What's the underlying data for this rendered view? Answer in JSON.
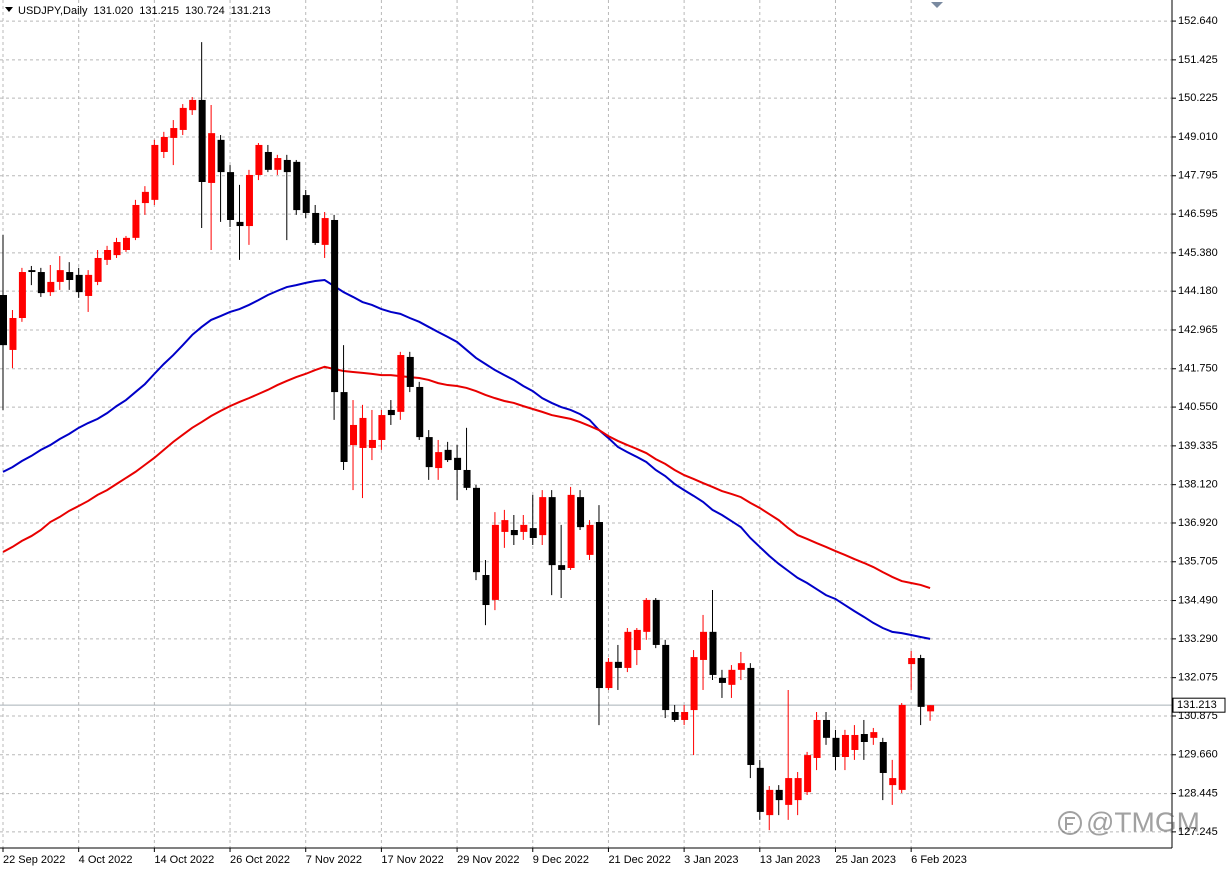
{
  "chart_data": {
    "type": "candlestick",
    "title": "USDJPY,Daily",
    "header_values": [
      {
        "value": 131.02,
        "label": "131.020"
      },
      131.215,
      130.724,
      131.213
    ],
    "categories": [
      "22 Sep 2022",
      null,
      null,
      null,
      null,
      null,
      null,
      null,
      "4 Oct 2022",
      null,
      null,
      null,
      null,
      null,
      null,
      null,
      "14 Oct 2022",
      null,
      null,
      null,
      null,
      null,
      null,
      null,
      "26 Oct 2022",
      null,
      null,
      null,
      null,
      null,
      null,
      null,
      "7 Nov 2022",
      null,
      null,
      null,
      null,
      null,
      null,
      null,
      "17 Nov 2022",
      null,
      null,
      null,
      null,
      null,
      null,
      null,
      "29 Nov 2022",
      null,
      null,
      null,
      null,
      null,
      null,
      null,
      "9 Dec 2022",
      null,
      null,
      null,
      null,
      null,
      null,
      null,
      "21 Dec 2022",
      null,
      null,
      null,
      null,
      null,
      null,
      null,
      "3 Jan 2023",
      null,
      null,
      null,
      null,
      null,
      null,
      null,
      "13 Jan 2023",
      null,
      null,
      null,
      null,
      null,
      null,
      null,
      "25 Jan 2023",
      null,
      null,
      null,
      null,
      null,
      null,
      null,
      "6 Feb 2023",
      null,
      null
    ],
    "open": [
      144.06,
      142.34,
      143.34,
      144.84,
      144.78,
      144.15,
      144.47,
      144.78,
      144.69,
      144.03,
      144.47,
      145.16,
      145.31,
      145.47,
      145.85,
      146.94,
      147.04,
      148.54,
      148.98,
      149.23,
      149.85,
      150.17,
      147.57,
      148.92,
      147.91,
      146.35,
      146.22,
      147.82,
      148.54,
      147.98,
      148.29,
      148.23,
      147.19,
      146.63,
      145.63,
      146.41,
      141.02,
      139.36,
      139.27,
      139.27,
      139.52,
      140.46,
      140.4,
      142.12,
      141.18,
      139.61,
      138.64,
      139.21,
      138.96,
      138.58,
      138.02,
      135.29,
      134.51,
      136.64,
      136.7,
      136.64,
      136.76,
      136.54,
      137.73,
      135.6,
      135.51,
      137.73,
      135.92,
      136.95,
      131.75,
      132.57,
      132.38,
      132.94,
      133.51,
      134.51,
      133.1,
      131.0,
      130.75,
      131.06,
      132.63,
      133.51,
      132.07,
      131.85,
      132.32,
      132.38,
      129.25,
      127.77,
      128.56,
      128.09,
      128.24,
      128.49,
      129.56,
      130.75,
      130.19,
      129.59,
      129.81,
      130.31,
      130.19,
      130.06,
      128.71,
      128.56,
      132.5,
      132.69,
      131.02
    ],
    "high": [
      145.94,
      143.59,
      144.91,
      144.97,
      144.91,
      145.0,
      145.28,
      145.09,
      144.91,
      144.84,
      145.47,
      145.6,
      145.85,
      145.91,
      147.04,
      147.47,
      148.92,
      149.17,
      149.54,
      150.04,
      150.26,
      151.98,
      150.01,
      149.07,
      148.13,
      147.51,
      147.98,
      148.82,
      148.76,
      148.45,
      148.45,
      148.29,
      147.35,
      146.88,
      146.66,
      146.57,
      142.49,
      140.77,
      140.62,
      140.46,
      140.46,
      140.77,
      142.28,
      142.28,
      141.34,
      139.83,
      139.52,
      139.46,
      139.36,
      139.9,
      138.11,
      135.76,
      137.26,
      137.33,
      137.17,
      137.17,
      137.8,
      137.95,
      137.95,
      136.86,
      138.05,
      137.95,
      137.01,
      137.48,
      132.69,
      133.1,
      133.63,
      133.63,
      134.57,
      134.57,
      133.26,
      131.22,
      131.22,
      132.94,
      134.04,
      134.82,
      132.32,
      132.47,
      132.88,
      132.53,
      129.5,
      128.68,
      128.71,
      131.69,
      129.12,
      129.75,
      131.0,
      131.0,
      130.44,
      130.44,
      130.59,
      130.75,
      130.5,
      130.19,
      129.5,
      131.28,
      132.91,
      132.79,
      131.215
    ],
    "low": [
      140.46,
      141.77,
      143.22,
      144.37,
      144.0,
      144.03,
      144.22,
      144.22,
      143.97,
      143.53,
      144.37,
      145.0,
      145.22,
      145.41,
      145.78,
      146.57,
      146.88,
      148.35,
      148.13,
      149.07,
      149.7,
      146.16,
      145.47,
      146.35,
      146.19,
      145.16,
      145.63,
      147.66,
      147.91,
      147.82,
      145.78,
      146.57,
      146.47,
      145.63,
      145.22,
      140.15,
      138.58,
      137.95,
      137.7,
      138.89,
      139.21,
      139.99,
      140.15,
      141.02,
      139.52,
      138.27,
      138.27,
      138.83,
      137.64,
      137.95,
      135.13,
      133.72,
      134.19,
      136.14,
      136.23,
      136.39,
      136.23,
      136.23,
      134.66,
      134.57,
      135.45,
      136.7,
      135.76,
      130.59,
      131.69,
      131.69,
      132.25,
      132.47,
      133.26,
      133.0,
      130.81,
      130.69,
      130.59,
      129.65,
      131.69,
      132.0,
      131.44,
      131.44,
      132.0,
      128.93,
      127.62,
      127.3,
      127.77,
      127.62,
      127.77,
      128.4,
      129.18,
      129.97,
      129.18,
      129.18,
      129.5,
      129.5,
      129.97,
      128.24,
      128.09,
      128.46,
      131.69,
      130.59,
      130.724
    ],
    "close": [
      142.49,
      143.34,
      144.78,
      144.78,
      144.12,
      144.47,
      144.84,
      144.53,
      144.15,
      144.69,
      145.22,
      145.47,
      145.72,
      145.85,
      146.88,
      147.29,
      148.76,
      149.01,
      149.29,
      149.92,
      150.17,
      147.6,
      149.13,
      147.91,
      146.41,
      146.22,
      147.82,
      148.76,
      147.98,
      148.35,
      147.91,
      146.72,
      146.63,
      145.69,
      146.47,
      141.02,
      138.83,
      139.99,
      140.21,
      139.52,
      140.3,
      140.3,
      142.18,
      141.18,
      139.61,
      138.67,
      139.14,
      138.89,
      138.58,
      138.02,
      135.38,
      134.35,
      136.86,
      137.01,
      136.54,
      136.86,
      136.45,
      137.73,
      135.6,
      135.45,
      137.8,
      136.79,
      136.86,
      131.75,
      132.57,
      132.38,
      133.51,
      133.57,
      134.51,
      133.1,
      131.06,
      130.75,
      131.0,
      132.72,
      133.51,
      132.16,
      131.91,
      132.32,
      132.53,
      129.34,
      127.87,
      128.56,
      128.24,
      128.93,
      128.93,
      129.65,
      130.75,
      130.19,
      129.59,
      130.28,
      130.28,
      130.06,
      130.37,
      129.09,
      128.93,
      131.22,
      132.69,
      131.16,
      131.213
    ],
    "up_color": "#ff0000",
    "down_color": "#000000",
    "lines": [
      {
        "color": "#0000c8",
        "values": [
          138.52,
          138.67,
          138.86,
          139.02,
          139.21,
          139.36,
          139.55,
          139.71,
          139.9,
          140.05,
          140.18,
          140.36,
          140.58,
          140.77,
          141.02,
          141.27,
          141.59,
          141.9,
          142.18,
          142.49,
          142.81,
          143.06,
          143.28,
          143.4,
          143.53,
          143.62,
          143.75,
          143.9,
          144.06,
          144.19,
          144.31,
          144.37,
          144.44,
          144.5,
          144.53,
          144.34,
          144.15,
          144.0,
          143.84,
          143.75,
          143.62,
          143.53,
          143.47,
          143.34,
          143.22,
          143.06,
          142.9,
          142.75,
          142.59,
          142.34,
          142.09,
          141.9,
          141.71,
          141.55,
          141.4,
          141.21,
          141.05,
          140.83,
          140.68,
          140.55,
          140.46,
          140.33,
          140.15,
          139.83,
          139.58,
          139.3,
          139.14,
          138.99,
          138.83,
          138.58,
          138.39,
          138.14,
          137.95,
          137.77,
          137.58,
          137.33,
          137.17,
          136.98,
          136.79,
          136.45,
          136.17,
          135.89,
          135.64,
          135.42,
          135.2,
          135.04,
          134.85,
          134.66,
          134.54,
          134.35,
          134.16,
          133.98,
          133.79,
          133.63,
          133.51,
          133.47,
          133.41,
          133.35,
          133.29
        ]
      },
      {
        "color": "#e80000",
        "values": [
          136.01,
          136.17,
          136.36,
          136.51,
          136.7,
          136.95,
          137.11,
          137.3,
          137.45,
          137.61,
          137.8,
          137.95,
          138.14,
          138.33,
          138.52,
          138.74,
          138.96,
          139.21,
          139.46,
          139.68,
          139.9,
          140.08,
          140.27,
          140.43,
          140.58,
          140.71,
          140.83,
          140.96,
          141.09,
          141.24,
          141.37,
          141.49,
          141.59,
          141.71,
          141.81,
          141.74,
          141.68,
          141.65,
          141.62,
          141.59,
          141.55,
          141.55,
          141.52,
          141.49,
          141.46,
          141.4,
          141.3,
          141.24,
          141.21,
          141.15,
          141.05,
          140.93,
          140.83,
          140.74,
          140.68,
          140.58,
          140.49,
          140.4,
          140.3,
          140.24,
          140.18,
          140.08,
          139.96,
          139.83,
          139.64,
          139.49,
          139.36,
          139.24,
          139.11,
          138.92,
          138.77,
          138.58,
          138.42,
          138.3,
          138.17,
          138.05,
          137.92,
          137.83,
          137.73,
          137.55,
          137.39,
          137.2,
          137.01,
          136.76,
          136.54,
          136.42,
          136.29,
          136.17,
          136.04,
          135.92,
          135.79,
          135.67,
          135.54,
          135.38,
          135.23,
          135.1,
          135.04,
          134.98,
          134.88
        ]
      }
    ],
    "price_line": 131.213,
    "ylim": [
      126.74,
      153.3
    ],
    "yticks": [
      {
        "value": 152.64,
        "label": "152.640"
      },
      151.425,
      150.225,
      {
        "value": 149.01,
        "label": "149.010"
      },
      147.795,
      146.595,
      {
        "value": 145.38,
        "label": "145.380"
      },
      {
        "value": 144.18,
        "label": "144.180"
      },
      142.965,
      {
        "value": 141.75,
        "label": "141.750"
      },
      {
        "value": 140.55,
        "label": "140.550"
      },
      139.335,
      {
        "value": 138.12,
        "label": "138.120"
      },
      {
        "value": 136.92,
        "label": "136.920"
      },
      135.705,
      {
        "value": 134.49,
        "label": "134.490"
      },
      {
        "value": 133.29,
        "label": "133.290"
      },
      132.075,
      130.875,
      {
        "value": 129.66,
        "label": "129.660"
      },
      128.445,
      127.245
    ],
    "grid": true,
    "watermark": "@TMGM"
  }
}
